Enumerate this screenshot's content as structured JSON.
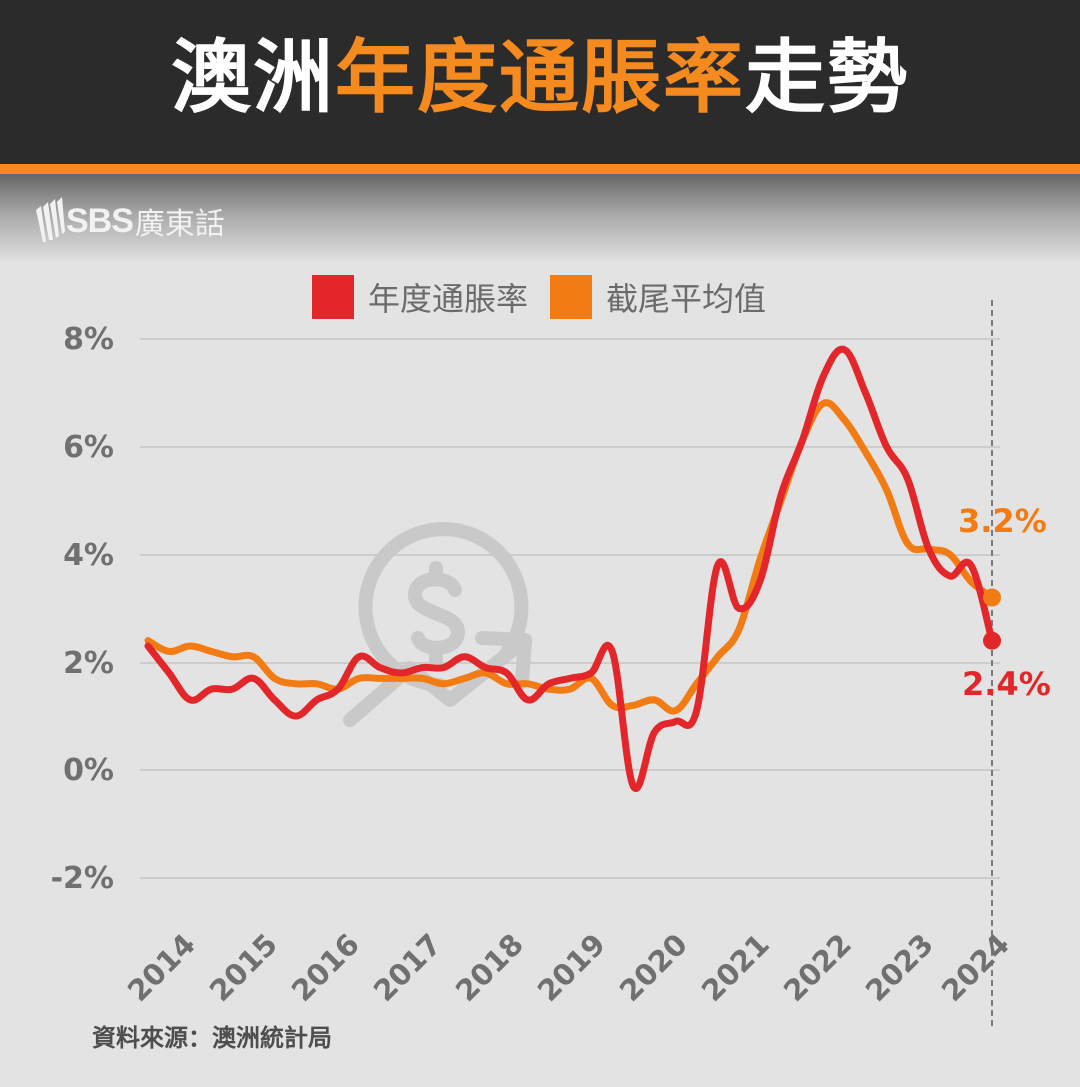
{
  "header": {
    "title_part1": "澳洲",
    "title_part2": "年度通脹率",
    "title_part3": "走勢"
  },
  "logo": {
    "brand": "SBS",
    "language": "廣東話"
  },
  "legend": [
    {
      "label": "年度通脹率",
      "color": "#e3262a"
    },
    {
      "label": "截尾平均值",
      "color": "#f27b14"
    }
  ],
  "yaxis": {
    "ticks": [
      "8%",
      "6%",
      "4%",
      "2%",
      "0%",
      "-2%"
    ]
  },
  "xaxis": {
    "ticks": [
      "2014",
      "2015",
      "2016",
      "2017",
      "2018",
      "2019",
      "2020",
      "2021",
      "2022",
      "2023",
      "2024"
    ]
  },
  "annotations": {
    "trimmed_mean_latest": "3.2%",
    "annual_cpi_latest": "2.4%"
  },
  "source": "資料來源：澳洲統計局",
  "colors": {
    "header_bg": "#2b2b2b",
    "accent_orange": "#f58a1f",
    "cpi_red": "#e3262a",
    "trimmed_orange": "#f27b14",
    "axis_text": "#707070",
    "background": "#e3e3e3"
  },
  "chart_data": {
    "type": "line",
    "title": "澳洲年度通脹率走勢",
    "xlabel": "",
    "ylabel": "",
    "ylim": [
      -2,
      8
    ],
    "yticks": [
      -2,
      0,
      2,
      4,
      6,
      8
    ],
    "grid": true,
    "legend_position": "top",
    "x": [
      2014.0,
      2014.25,
      2014.5,
      2014.75,
      2015.0,
      2015.25,
      2015.5,
      2015.75,
      2016.0,
      2016.25,
      2016.5,
      2016.75,
      2017.0,
      2017.25,
      2017.5,
      2017.75,
      2018.0,
      2018.25,
      2018.5,
      2018.75,
      2019.0,
      2019.25,
      2019.5,
      2019.75,
      2020.0,
      2020.25,
      2020.5,
      2020.75,
      2021.0,
      2021.25,
      2021.5,
      2021.75,
      2022.0,
      2022.25,
      2022.5,
      2022.75,
      2023.0,
      2023.25,
      2023.5,
      2023.75,
      2024.0
    ],
    "series": [
      {
        "name": "年度通脹率",
        "color": "#e3262a",
        "values": [
          2.3,
          1.8,
          1.3,
          1.5,
          1.5,
          1.7,
          1.3,
          1.0,
          1.3,
          1.5,
          2.1,
          1.9,
          1.8,
          1.9,
          1.9,
          2.1,
          1.9,
          1.8,
          1.3,
          1.6,
          1.7,
          1.8,
          2.2,
          -0.3,
          0.7,
          0.9,
          1.1,
          3.8,
          3.0,
          3.5,
          5.1,
          6.1,
          7.3,
          7.8,
          7.0,
          6.0,
          5.4,
          4.1,
          3.6,
          3.8,
          2.4
        ]
      },
      {
        "name": "截尾平均值",
        "color": "#f27b14",
        "values": [
          2.4,
          2.2,
          2.3,
          2.2,
          2.1,
          2.1,
          1.7,
          1.6,
          1.6,
          1.5,
          1.7,
          1.7,
          1.7,
          1.7,
          1.6,
          1.7,
          1.8,
          1.6,
          1.6,
          1.5,
          1.5,
          1.7,
          1.2,
          1.2,
          1.3,
          1.1,
          1.6,
          2.1,
          2.6,
          3.9,
          5.0,
          6.1,
          6.8,
          6.5,
          5.9,
          5.2,
          4.2,
          4.1,
          4.0,
          3.5,
          3.2
        ]
      }
    ],
    "annotations": [
      {
        "series": "截尾平均值",
        "text": "3.2%",
        "value": 3.2
      },
      {
        "series": "年度通脹率",
        "text": "2.4%",
        "value": 2.4
      }
    ],
    "vertical_marker": {
      "at": "2024",
      "style": "dashed"
    }
  }
}
